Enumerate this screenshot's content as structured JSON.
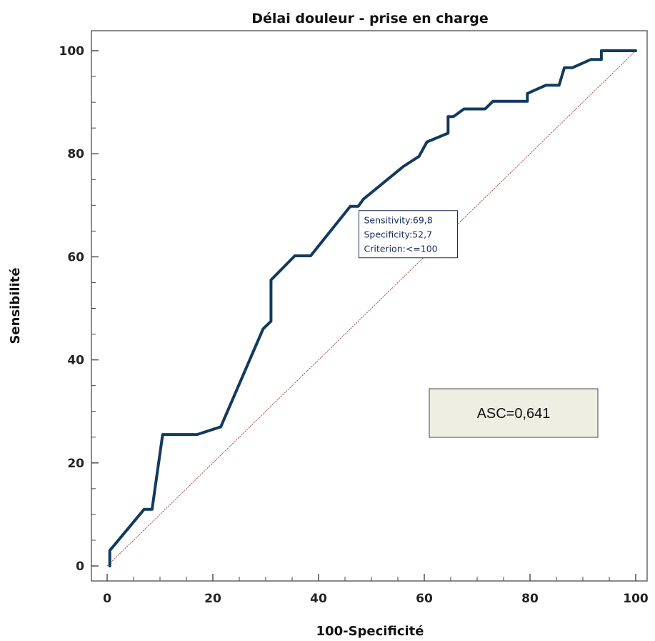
{
  "chart_data": {
    "type": "line",
    "title": "Délai douleur - prise en charge",
    "xlabel": "100-Specificité",
    "ylabel": "Sensibilité",
    "xlim": [
      0,
      100
    ],
    "ylim": [
      0,
      100
    ],
    "xticks": [
      0,
      20,
      40,
      60,
      80,
      100
    ],
    "yticks": [
      0,
      20,
      40,
      60,
      80,
      100
    ],
    "grid": false,
    "series": [
      {
        "name": "",
        "color": "#123a5e",
        "x": [
          0.5,
          0.5,
          7,
          8.5,
          10.5,
          17,
          21.5,
          29.5,
          31,
          31,
          35.5,
          38.5,
          46,
          47.5,
          48.5,
          56,
          59,
          60.5,
          64.5,
          64.5,
          65.5,
          67.5,
          71.5,
          73,
          79.5,
          79.5,
          83,
          85.5,
          86.5,
          88,
          91.5,
          93.5,
          93.5,
          100
        ],
        "y": [
          0,
          3,
          11,
          11,
          25.5,
          25.5,
          27,
          46,
          47.5,
          55.5,
          60.2,
          60.2,
          69.8,
          69.8,
          71.2,
          77.5,
          79.5,
          82.3,
          84,
          87.2,
          87.2,
          88.7,
          88.7,
          90.2,
          90.2,
          91.7,
          93.3,
          93.3,
          96.7,
          96.7,
          98.3,
          98.3,
          100,
          100
        ]
      },
      {
        "name": "",
        "color": "#b25555",
        "style": "dotted",
        "x": [
          0,
          100
        ],
        "y": [
          0,
          100
        ]
      }
    ],
    "annotations": [
      {
        "lines": [
          "Sensitivity:69,8",
          "Specificity:52,7",
          "Criterion:<=100"
        ],
        "x": 47.5,
        "y": 69.8
      }
    ],
    "auc_label": "ASC=0,641",
    "colors": {
      "auc_box_fill": "#efeee3",
      "tooltip_border": "#1c2a5a"
    }
  }
}
